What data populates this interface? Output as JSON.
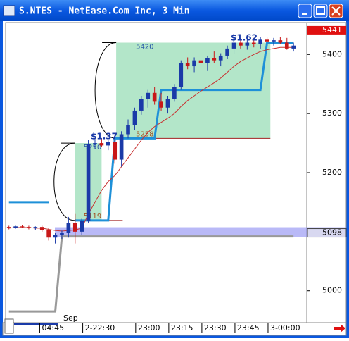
{
  "window": {
    "title": "S.NTES - NetEase.Com Inc, 3 Min"
  },
  "chart_data": {
    "type": "candlestick",
    "candles": [
      [
        5108,
        5110,
        5104,
        5107
      ],
      [
        5107,
        5110,
        5105,
        5109
      ],
      [
        5109,
        5111,
        5106,
        5108
      ],
      [
        5108,
        5110,
        5104,
        5106
      ],
      [
        5106,
        5109,
        5103,
        5108
      ],
      [
        5108,
        5110,
        5100,
        5103
      ],
      [
        5103,
        5106,
        5085,
        5090
      ],
      [
        5090,
        5098,
        5080,
        5095
      ],
      [
        5095,
        5102,
        5088,
        5098
      ],
      [
        5098,
        5125,
        5090,
        5115
      ],
      [
        5115,
        5130,
        5080,
        5100
      ],
      [
        5100,
        5122,
        5095,
        5119
      ],
      [
        5119,
        5255,
        5115,
        5248
      ],
      [
        5248,
        5262,
        5240,
        5250
      ],
      [
        5250,
        5258,
        5243,
        5246
      ],
      [
        5246,
        5255,
        5238,
        5252
      ],
      [
        5252,
        5255,
        5215,
        5222
      ],
      [
        5222,
        5270,
        5210,
        5265
      ],
      [
        5265,
        5290,
        5258,
        5280
      ],
      [
        5280,
        5310,
        5272,
        5305
      ],
      [
        5305,
        5330,
        5298,
        5325
      ],
      [
        5325,
        5340,
        5310,
        5335
      ],
      [
        5335,
        5345,
        5315,
        5320
      ],
      [
        5320,
        5335,
        5305,
        5310
      ],
      [
        5310,
        5330,
        5300,
        5325
      ],
      [
        5325,
        5350,
        5320,
        5345
      ],
      [
        5345,
        5390,
        5340,
        5385
      ],
      [
        5385,
        5395,
        5375,
        5380
      ],
      [
        5380,
        5395,
        5370,
        5390
      ],
      [
        5390,
        5400,
        5380,
        5385
      ],
      [
        5385,
        5398,
        5372,
        5394
      ],
      [
        5394,
        5405,
        5385,
        5390
      ],
      [
        5390,
        5402,
        5380,
        5398
      ],
      [
        5398,
        5415,
        5392,
        5410
      ],
      [
        5410,
        5425,
        5400,
        5420
      ],
      [
        5420,
        5428,
        5410,
        5415
      ],
      [
        5415,
        5425,
        5408,
        5420
      ],
      [
        5420,
        5428,
        5412,
        5418
      ],
      [
        5418,
        5430,
        5410,
        5425
      ],
      [
        5425,
        5430,
        5418,
        5422
      ],
      [
        5422,
        5428,
        5415,
        5424
      ],
      [
        5424,
        5430,
        5418,
        5420
      ],
      [
        5420,
        5428,
        5408,
        5410
      ],
      [
        5410,
        5420,
        5405,
        5415
      ]
    ],
    "up_color": "#1a3aa8",
    "down_color": "#c81818",
    "series": [
      {
        "color": "#1e90d8",
        "values": [
          5150,
          5150,
          5150,
          5150,
          5150,
          5150,
          5150,
          null,
          null,
          null,
          5119,
          5119,
          5119,
          5119,
          5119,
          5119,
          5258,
          5258,
          5258,
          5258,
          5258,
          5258,
          5258,
          5340,
          5340,
          5340,
          5340,
          5340,
          5340,
          5340,
          5340,
          5340,
          5340,
          5340,
          5340,
          5340,
          5340,
          5340,
          5340,
          5420,
          5420,
          5420,
          5420,
          5420
        ]
      },
      {
        "color": "#999999",
        "values": [
          4965,
          4965,
          4965,
          4965,
          4965,
          4965,
          4965,
          4965,
          5092,
          5092,
          5092,
          5092,
          5092,
          5092,
          5092,
          5092,
          5092,
          5092,
          5092,
          5092,
          5092,
          5092,
          5092,
          5092,
          5092,
          5092,
          5092,
          5092,
          5092,
          5092,
          5092,
          5092,
          5092,
          5092,
          5092,
          5092,
          5092,
          5092,
          5092,
          5092,
          5092,
          5092,
          5092,
          5092
        ]
      },
      {
        "color": "#c83030",
        "values": [
          5106,
          5107,
          5107,
          5107,
          5106,
          5106,
          5104,
          5102,
          5101,
          5102,
          5103,
          5106,
          5130,
          5150,
          5170,
          5185,
          5195,
          5210,
          5225,
          5240,
          5255,
          5268,
          5278,
          5285,
          5292,
          5300,
          5312,
          5322,
          5330,
          5338,
          5345,
          5352,
          5360,
          5370,
          5380,
          5388,
          5394,
          5400,
          5405,
          5408,
          5410,
          5412,
          5412,
          5412
        ]
      }
    ],
    "boxes": [
      {
        "x0": 10,
        "x1": 14,
        "low": 5119,
        "high": 5250
      },
      {
        "x0": 16.2,
        "x1": 39.5,
        "low": 5258,
        "high": 5420
      }
    ],
    "annotations": [
      "$1.37",
      "$1.62"
    ],
    "band_price": 5098,
    "last_price": 5441,
    "xlim": [
      -0.5,
      45
    ],
    "ylim": [
      4946,
      5454
    ],
    "yticks": [
      5000,
      5200,
      5300,
      5400
    ],
    "xticks": [
      {
        "value": 5.5,
        "label": "04:45"
      },
      {
        "value": 12,
        "label": "2-22:30"
      },
      {
        "value": 20,
        "label": "23:00"
      },
      {
        "value": 25,
        "label": "23:15"
      },
      {
        "value": 30,
        "label": "23:30"
      },
      {
        "value": 35,
        "label": "23:45"
      },
      {
        "value": 40,
        "label": "3-00:00"
      }
    ],
    "x_note": "Sep"
  }
}
